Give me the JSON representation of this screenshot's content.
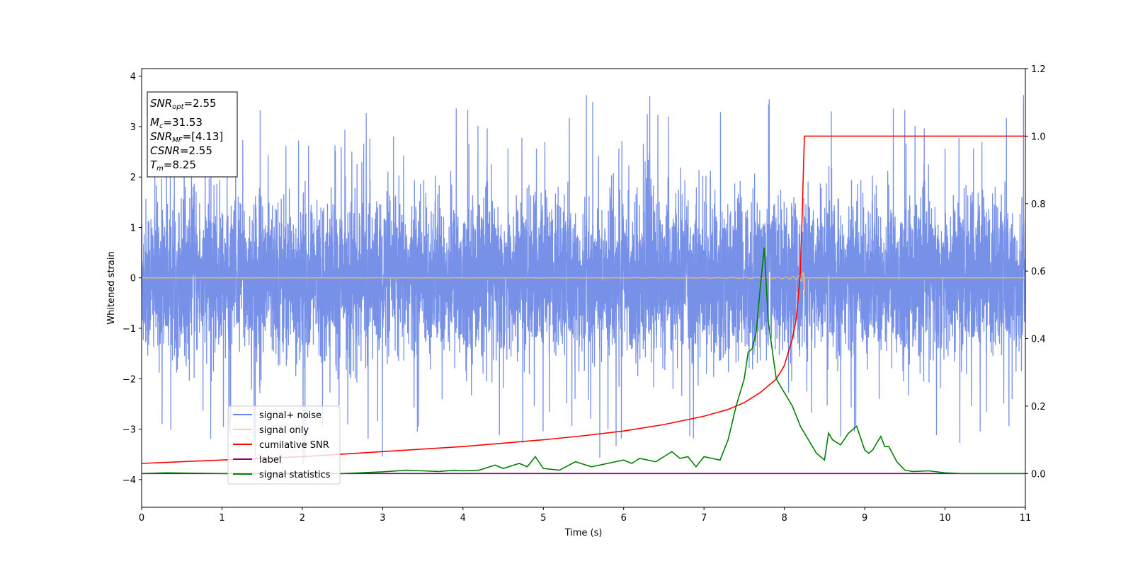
{
  "chart_data": {
    "type": "line",
    "xlabel": "Time (s)",
    "ylabel": "Whitened strain",
    "xlim": [
      0,
      11
    ],
    "ylim": [
      -4.55,
      4.15
    ],
    "y2lim": [
      -0.1,
      1.2
    ],
    "xticks": [
      "0",
      "1",
      "2",
      "3",
      "4",
      "5",
      "6",
      "7",
      "8",
      "9",
      "10",
      "11"
    ],
    "yticks": [
      "4",
      "3",
      "2",
      "1",
      "0",
      "−1",
      "−2",
      "−3",
      "−4"
    ],
    "y2ticks": [
      "1.2",
      "1.0",
      "0.8",
      "0.6",
      "0.4",
      "0.2",
      "0.0"
    ],
    "grid": false,
    "legend_position": "lower-left",
    "info_box": {
      "snr_opt_label": "SNR",
      "snr_opt_sub": "opt",
      "snr_opt_value": "=2.55",
      "mc_label": "M",
      "mc_sub": "c",
      "mc_value": "=31.53",
      "snr_mf_label": "SNR",
      "snr_mf_sub": "MF",
      "snr_mf_value": "=[4.13]",
      "csnr_label": "CSNR",
      "csnr_value": "=2.55",
      "tm_label": "T",
      "tm_sub": "m",
      "tm_value": "=8.25"
    },
    "series": [
      {
        "name": "signal+ noise",
        "color": "#6b87e6",
        "axis": "left",
        "kind": "noise",
        "center": 0,
        "typical_amplitude": 1.25,
        "max_abs": 3.7
      },
      {
        "name": "signal only",
        "color": "#f5c06b",
        "axis": "left",
        "kind": "chirp",
        "merger_time": 8.25,
        "peak_amplitude": 0.65
      },
      {
        "name": "cumilative SNR",
        "color": "#ff0000",
        "axis": "right",
        "x": [
          0,
          1,
          2,
          3,
          4,
          5,
          5.5,
          6,
          6.5,
          7,
          7.3,
          7.5,
          7.7,
          7.9,
          8.0,
          8.1,
          8.15,
          8.2,
          8.22,
          8.24,
          8.25,
          8.26,
          11
        ],
        "y": [
          0.03,
          0.04,
          0.05,
          0.065,
          0.08,
          0.1,
          0.112,
          0.126,
          0.145,
          0.17,
          0.19,
          0.21,
          0.24,
          0.28,
          0.32,
          0.4,
          0.46,
          0.6,
          0.75,
          0.92,
          1.0,
          1.0,
          1.0
        ]
      },
      {
        "name": "label",
        "color": "#800080",
        "axis": "right",
        "x": [
          0,
          11
        ],
        "y": [
          0,
          0
        ]
      },
      {
        "name": "signal statistics",
        "color": "#008000",
        "axis": "right",
        "x": [
          0,
          0.3,
          1,
          2,
          2.5,
          3,
          3.3,
          3.5,
          3.7,
          3.9,
          4.0,
          4.2,
          4.4,
          4.5,
          4.7,
          4.8,
          4.9,
          5.0,
          5.2,
          5.4,
          5.6,
          5.8,
          6.0,
          6.1,
          6.2,
          6.4,
          6.6,
          6.7,
          6.8,
          6.9,
          7.0,
          7.2,
          7.3,
          7.4,
          7.5,
          7.55,
          7.6,
          7.65,
          7.7,
          7.75,
          7.8,
          7.9,
          8.0,
          8.1,
          8.2,
          8.3,
          8.4,
          8.5,
          8.55,
          8.6,
          8.7,
          8.8,
          8.9,
          9.0,
          9.05,
          9.1,
          9.2,
          9.25,
          9.3,
          9.4,
          9.5,
          9.6,
          9.8,
          10.0,
          10.2,
          11
        ],
        "y": [
          0,
          0.002,
          0,
          0,
          0,
          0.005,
          0.01,
          0.008,
          0.006,
          0.01,
          0.008,
          0.01,
          0.025,
          0.015,
          0.03,
          0.02,
          0.05,
          0.015,
          0.01,
          0.035,
          0.02,
          0.03,
          0.04,
          0.03,
          0.045,
          0.035,
          0.065,
          0.045,
          0.05,
          0.02,
          0.05,
          0.04,
          0.1,
          0.2,
          0.28,
          0.36,
          0.37,
          0.42,
          0.55,
          0.67,
          0.45,
          0.28,
          0.24,
          0.2,
          0.14,
          0.1,
          0.06,
          0.04,
          0.12,
          0.1,
          0.085,
          0.12,
          0.14,
          0.07,
          0.06,
          0.07,
          0.11,
          0.08,
          0.08,
          0.035,
          0.01,
          0.006,
          0.008,
          0.002,
          0,
          0
        ]
      }
    ]
  }
}
